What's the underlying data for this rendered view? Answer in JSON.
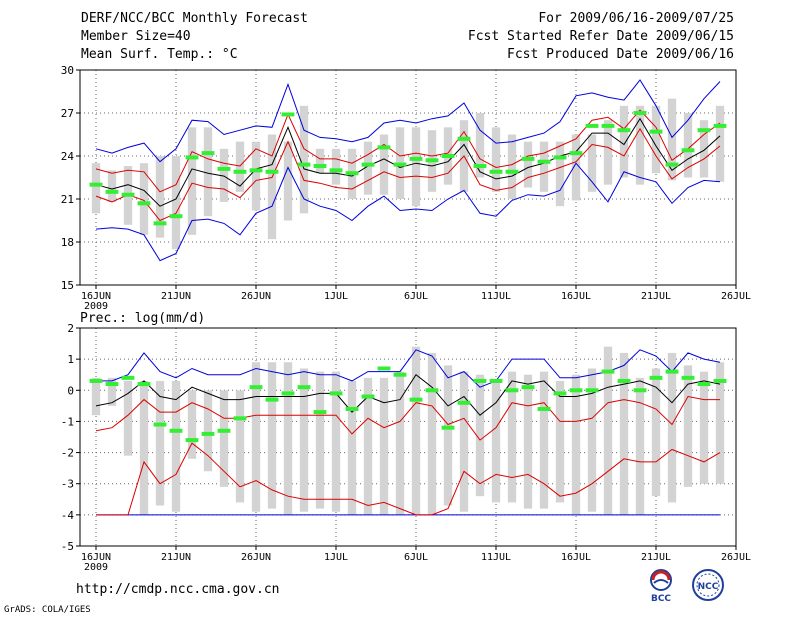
{
  "header": {
    "left": [
      "DERF/NCC/BCC Monthly Forecast",
      "Member Size=40",
      "Mean Surf. Temp.: °C"
    ],
    "right": [
      "For 2009/06/16-2009/07/25",
      "Fcst Started Refer Date 2009/06/15",
      "Fcst Produced Date 2009/06/16"
    ]
  },
  "footer": {
    "url": "http://cmdp.ncc.cma.gov.cn",
    "credit": "GrADS: COLA/IGES",
    "logo_bcc": "BCC",
    "logo_ncc": "NCC"
  },
  "chart_data": [
    {
      "type": "box",
      "title": "Mean Surf. Temp.: °C",
      "x": [
        1,
        2,
        3,
        4,
        5,
        6,
        7,
        8,
        9,
        10,
        11,
        12,
        13,
        14,
        15,
        16,
        17,
        18,
        19,
        20,
        21,
        22,
        23,
        24,
        25,
        26,
        27,
        28,
        29,
        30,
        31,
        32,
        33,
        34,
        35,
        36,
        37,
        38,
        39,
        40
      ],
      "x_ticks": [
        1,
        6,
        11,
        16,
        21,
        26,
        31,
        36,
        41
      ],
      "x_tick_labels": [
        "16JUN",
        "21JUN",
        "26JUN",
        "1JUL",
        "6JUL",
        "11JUL",
        "16JUL",
        "21JUL",
        "26JUL"
      ],
      "x_sublabel": "2009",
      "ylim": [
        15,
        30
      ],
      "y_ticks": [
        15,
        18,
        21,
        24,
        27,
        30
      ],
      "box_lo": [
        20.0,
        20.8,
        19.2,
        18.5,
        18.3,
        17.5,
        18.5,
        19.8,
        20.8,
        21.5,
        20.2,
        18.2,
        19.5,
        20.0,
        22.8,
        22.0,
        21.0,
        21.3,
        21.3,
        21.0,
        20.5,
        21.5,
        22.0,
        21.5,
        22.5,
        21.5,
        21.0,
        21.8,
        21.5,
        20.5,
        20.9,
        21.5,
        22.0,
        22.5,
        22.0,
        22.8,
        22.3,
        22.5,
        22.5,
        22.2
      ],
      "box_hi": [
        23.5,
        23.0,
        23.3,
        23.5,
        24.0,
        24.0,
        26.0,
        26.0,
        24.5,
        25.0,
        25.0,
        25.5,
        25.0,
        27.5,
        24.5,
        24.5,
        24.5,
        25.0,
        25.5,
        26.0,
        26.0,
        25.8,
        26.0,
        26.5,
        27.0,
        26.0,
        25.5,
        25.0,
        25.0,
        25.0,
        25.5,
        25.5,
        26.5,
        27.5,
        27.5,
        27.5,
        28.0,
        27.0,
        26.5,
        27.5
      ],
      "mean": [
        22.0,
        21.7,
        22.0,
        21.6,
        20.5,
        21.0,
        23.1,
        22.8,
        22.6,
        21.9,
        23.1,
        23.4,
        26.0,
        23.1,
        22.8,
        22.8,
        22.6,
        23.3,
        23.8,
        23.2,
        23.5,
        23.3,
        23.6,
        24.8,
        22.9,
        22.4,
        22.6,
        23.2,
        23.5,
        24.0,
        24.3,
        25.6,
        25.6,
        24.8,
        26.6,
        24.7,
        23.0,
        23.8,
        24.4,
        25.4
      ],
      "upper_red": [
        23.1,
        22.8,
        23.0,
        22.9,
        21.5,
        22.0,
        24.3,
        23.8,
        23.5,
        23.3,
        24.5,
        24.0,
        26.9,
        24.5,
        23.8,
        23.8,
        23.5,
        24.1,
        24.8,
        24.0,
        24.2,
        24.0,
        24.2,
        25.7,
        23.8,
        23.2,
        23.4,
        24.0,
        24.2,
        24.7,
        25.2,
        26.5,
        26.7,
        25.9,
        27.2,
        26.0,
        23.7,
        24.5,
        25.5,
        26.3
      ],
      "lower_red": [
        21.2,
        20.8,
        21.3,
        20.9,
        19.5,
        20.0,
        22.1,
        21.8,
        21.7,
        21.1,
        22.3,
        22.5,
        25.0,
        22.3,
        22.1,
        21.8,
        21.7,
        22.3,
        22.9,
        22.5,
        22.6,
        22.5,
        22.8,
        24.0,
        22.0,
        21.6,
        21.8,
        22.5,
        22.8,
        23.2,
        23.6,
        24.8,
        24.6,
        24.0,
        25.9,
        24.0,
        22.4,
        23.2,
        23.8,
        24.7
      ],
      "upper_blue": [
        24.5,
        24.2,
        24.6,
        24.9,
        23.6,
        24.5,
        26.5,
        26.4,
        25.5,
        25.8,
        26.1,
        26.0,
        29.0,
        25.8,
        25.3,
        25.2,
        25.0,
        25.3,
        26.3,
        26.5,
        26.3,
        26.6,
        26.8,
        27.7,
        25.8,
        24.9,
        25.0,
        25.3,
        25.6,
        26.4,
        28.2,
        28.4,
        28.1,
        27.9,
        29.3,
        27.5,
        25.3,
        26.5,
        28.0,
        29.2
      ],
      "lower_blue": [
        18.9,
        19.0,
        18.9,
        18.5,
        16.7,
        17.2,
        19.5,
        19.6,
        19.3,
        18.5,
        20.0,
        20.5,
        23.2,
        21.0,
        20.5,
        20.2,
        19.5,
        20.5,
        21.2,
        20.2,
        20.3,
        20.2,
        21.0,
        21.6,
        20.0,
        19.8,
        20.9,
        21.3,
        21.2,
        21.6,
        23.5,
        22.2,
        20.8,
        22.9,
        22.5,
        22.2,
        20.7,
        21.8,
        22.3,
        22.2
      ],
      "green": [
        22.0,
        21.5,
        21.3,
        20.7,
        19.3,
        19.8,
        23.9,
        24.2,
        23.1,
        22.9,
        23.0,
        22.9,
        26.9,
        23.4,
        23.3,
        23.0,
        22.8,
        23.4,
        24.6,
        23.4,
        23.8,
        23.7,
        24.0,
        25.2,
        23.3,
        22.9,
        22.9,
        23.8,
        23.6,
        23.9,
        24.2,
        26.1,
        26.1,
        25.8,
        27.0,
        25.7,
        23.4,
        24.4,
        25.8,
        26.1
      ]
    },
    {
      "type": "box",
      "title": "Prec.: log(mm/d)",
      "x": [
        1,
        2,
        3,
        4,
        5,
        6,
        7,
        8,
        9,
        10,
        11,
        12,
        13,
        14,
        15,
        16,
        17,
        18,
        19,
        20,
        21,
        22,
        23,
        24,
        25,
        26,
        27,
        28,
        29,
        30,
        31,
        32,
        33,
        34,
        35,
        36,
        37,
        38,
        39,
        40
      ],
      "x_ticks": [
        1,
        6,
        11,
        16,
        21,
        26,
        31,
        36,
        41
      ],
      "x_tick_labels": [
        "16JUN",
        "21JUN",
        "26JUN",
        "1JUL",
        "6JUL",
        "11JUL",
        "16JUL",
        "21JUL",
        "26JUL"
      ],
      "x_sublabel": "2009",
      "ylim": [
        -5,
        2
      ],
      "y_ticks": [
        -5,
        -4,
        -3,
        -2,
        -1,
        0,
        1,
        2
      ],
      "box_lo": [
        -0.8,
        -0.5,
        -2.1,
        -4.0,
        -3.7,
        -3.9,
        -2.2,
        -2.6,
        -3.1,
        -3.6,
        -3.9,
        -3.8,
        -4.0,
        -3.9,
        -3.8,
        -3.9,
        -4.0,
        -4.0,
        -4.0,
        -4.0,
        -4.0,
        -4.0,
        -3.7,
        -3.9,
        -3.4,
        -3.6,
        -3.6,
        -3.8,
        -3.8,
        -3.6,
        -4.0,
        -3.9,
        -4.0,
        -4.0,
        -4.0,
        -3.4,
        -3.6,
        -3.1,
        -3.0,
        -3.0
      ],
      "box_hi": [
        0.4,
        0.4,
        0.3,
        0.3,
        0.3,
        0.3,
        0.0,
        0.0,
        0.0,
        0.0,
        0.9,
        0.9,
        0.9,
        0.7,
        0.6,
        0.6,
        0.3,
        0.4,
        0.4,
        0.6,
        1.4,
        1.2,
        0.8,
        0.6,
        0.5,
        0.3,
        0.6,
        0.5,
        0.6,
        0.3,
        0.5,
        0.7,
        1.4,
        1.2,
        0.4,
        0.7,
        1.2,
        0.8,
        0.6,
        0.9
      ],
      "mean": [
        -0.5,
        -0.4,
        -0.1,
        0.3,
        -0.2,
        -0.3,
        0.1,
        -0.1,
        -0.3,
        -0.3,
        -0.2,
        -0.2,
        -0.2,
        -0.2,
        -0.1,
        -0.1,
        -0.7,
        -0.2,
        -0.4,
        -0.3,
        0.5,
        0.1,
        -0.5,
        -0.2,
        -0.8,
        -0.4,
        0.3,
        0.2,
        0.3,
        -0.2,
        -0.2,
        -0.1,
        0.1,
        0.2,
        0.3,
        0.1,
        -0.4,
        0.2,
        0.3,
        0.2
      ],
      "upper_red": [
        -1.3,
        -1.2,
        -0.8,
        -0.3,
        -0.7,
        -0.7,
        -0.4,
        -0.6,
        -0.9,
        -0.9,
        -0.8,
        -0.8,
        -0.8,
        -0.8,
        -0.8,
        -0.8,
        -1.4,
        -0.9,
        -1.2,
        -1.0,
        -0.4,
        -0.5,
        -1.1,
        -0.9,
        -1.6,
        -1.2,
        -0.4,
        -0.5,
        -0.4,
        -1.0,
        -1.0,
        -0.9,
        -0.4,
        -0.3,
        -0.4,
        -0.6,
        -1.1,
        -0.2,
        -0.3,
        -0.3
      ],
      "lower_red": [
        -4.0,
        -4.0,
        -4.0,
        -2.3,
        -3.0,
        -2.7,
        -1.7,
        -2.1,
        -2.6,
        -3.1,
        -2.9,
        -3.2,
        -3.4,
        -3.5,
        -3.5,
        -3.5,
        -3.5,
        -3.7,
        -3.6,
        -3.8,
        -4.0,
        -4.0,
        -3.8,
        -2.6,
        -3.0,
        -2.7,
        -2.8,
        -2.7,
        -3.0,
        -3.4,
        -3.3,
        -3.0,
        -2.6,
        -2.2,
        -2.3,
        -2.3,
        -1.9,
        -2.1,
        -2.3,
        -2.0
      ],
      "upper_blue": [
        0.3,
        0.3,
        0.5,
        1.2,
        0.6,
        0.4,
        0.7,
        0.5,
        0.5,
        0.5,
        0.7,
        0.6,
        0.5,
        0.6,
        0.5,
        0.5,
        0.3,
        0.6,
        0.6,
        0.6,
        1.3,
        1.1,
        0.4,
        0.6,
        0.1,
        0.3,
        1.0,
        1.0,
        1.0,
        0.4,
        0.4,
        0.5,
        0.6,
        0.8,
        1.3,
        1.1,
        0.6,
        1.2,
        1.0,
        0.9
      ],
      "lower_blue": [
        -4.0,
        -4.0,
        -4.0,
        -4.0,
        -4.0,
        -4.0,
        -4.0,
        -4.0,
        -4.0,
        -4.0,
        -4.0,
        -4.0,
        -4.0,
        -4.0,
        -4.0,
        -4.0,
        -4.0,
        -4.0,
        -4.0,
        -4.0,
        -4.0,
        -4.0,
        -4.0,
        -4.0,
        -4.0,
        -4.0,
        -4.0,
        -4.0,
        -4.0,
        -4.0,
        -4.0,
        -4.0,
        -4.0,
        -4.0,
        -4.0,
        -4.0,
        -4.0,
        -4.0,
        -4.0,
        -4.0
      ],
      "green": [
        0.3,
        0.2,
        0.4,
        0.2,
        -1.1,
        -1.3,
        -1.6,
        -1.4,
        -1.3,
        -0.9,
        0.1,
        -0.3,
        -0.1,
        0.1,
        -0.7,
        -0.1,
        -0.6,
        -0.2,
        0.7,
        0.5,
        -0.3,
        0.0,
        -1.2,
        -0.4,
        0.3,
        0.3,
        0.0,
        0.1,
        -0.6,
        -0.1,
        0.0,
        0.0,
        0.6,
        0.3,
        0.0,
        0.4,
        0.6,
        0.4,
        0.2,
        0.3
      ]
    }
  ]
}
